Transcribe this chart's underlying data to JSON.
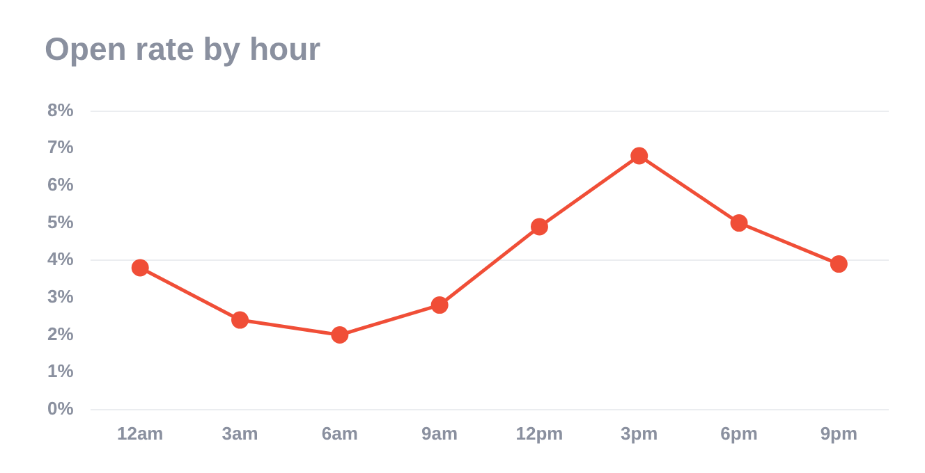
{
  "chart_data": {
    "type": "line",
    "title": "Open rate by hour",
    "categories": [
      "12am",
      "3am",
      "6am",
      "9am",
      "12pm",
      "3pm",
      "6pm",
      "9pm"
    ],
    "series": [
      {
        "color": "#f04e37",
        "values": [
          3.8,
          2.4,
          2.0,
          2.8,
          4.9,
          6.8,
          5.0,
          3.9
        ]
      }
    ],
    "ylim": [
      0,
      8
    ],
    "yticks": [
      {
        "value": 0,
        "label": "0%"
      },
      {
        "value": 1,
        "label": "1%"
      },
      {
        "value": 2,
        "label": "2%"
      },
      {
        "value": 3,
        "label": "3%"
      },
      {
        "value": 4,
        "label": "4%"
      },
      {
        "value": 5,
        "label": "5%"
      },
      {
        "value": 6,
        "label": "6%"
      },
      {
        "value": 7,
        "label": "7%"
      },
      {
        "value": 8,
        "label": "8%"
      }
    ],
    "grid": "y",
    "marker": "circle",
    "line_style": "solid"
  }
}
